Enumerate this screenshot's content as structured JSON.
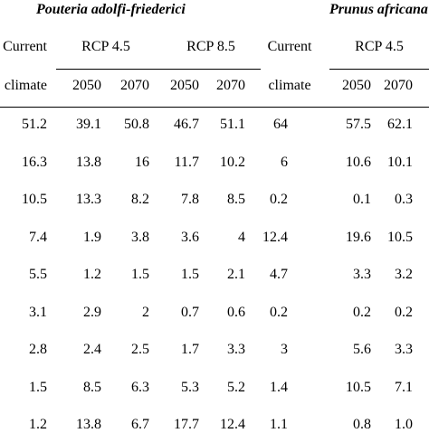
{
  "species": [
    "Pouteria adolfi-friederici",
    "Prunus africana"
  ],
  "header": {
    "current_top": "Current",
    "current_bottom": "climate",
    "scenarios": [
      "RCP 4.5",
      "RCP 8.5"
    ],
    "years": [
      "2050",
      "2070"
    ]
  },
  "rows": [
    [
      "51.2",
      "39.1",
      "50.8",
      "46.7",
      "51.1",
      "64",
      "57.5",
      "62.1"
    ],
    [
      "16.3",
      "13.8",
      "16",
      "11.7",
      "10.2",
      "6",
      "10.6",
      "10.1"
    ],
    [
      "10.5",
      "13.3",
      "8.2",
      "7.8",
      "8.5",
      "0.2",
      "0.1",
      "0.3"
    ],
    [
      "7.4",
      "1.9",
      "3.8",
      "3.6",
      "4",
      "12.4",
      "19.6",
      "10.5"
    ],
    [
      "5.5",
      "1.2",
      "1.5",
      "1.5",
      "2.1",
      "4.7",
      "3.3",
      "3.2"
    ],
    [
      "3.1",
      "2.9",
      "2",
      "0.7",
      "0.6",
      "0.2",
      "0.2",
      "0.2"
    ],
    [
      "2.8",
      "2.4",
      "2.5",
      "1.7",
      "3.3",
      "3",
      "5.6",
      "3.3"
    ],
    [
      "1.5",
      "8.5",
      "6.3",
      "5.3",
      "5.2",
      "1.4",
      "10.5",
      "7.1"
    ],
    [
      "1.2",
      "13.8",
      "6.7",
      "17.7",
      "12.4",
      "1.1",
      "0.8",
      "1.0"
    ]
  ]
}
